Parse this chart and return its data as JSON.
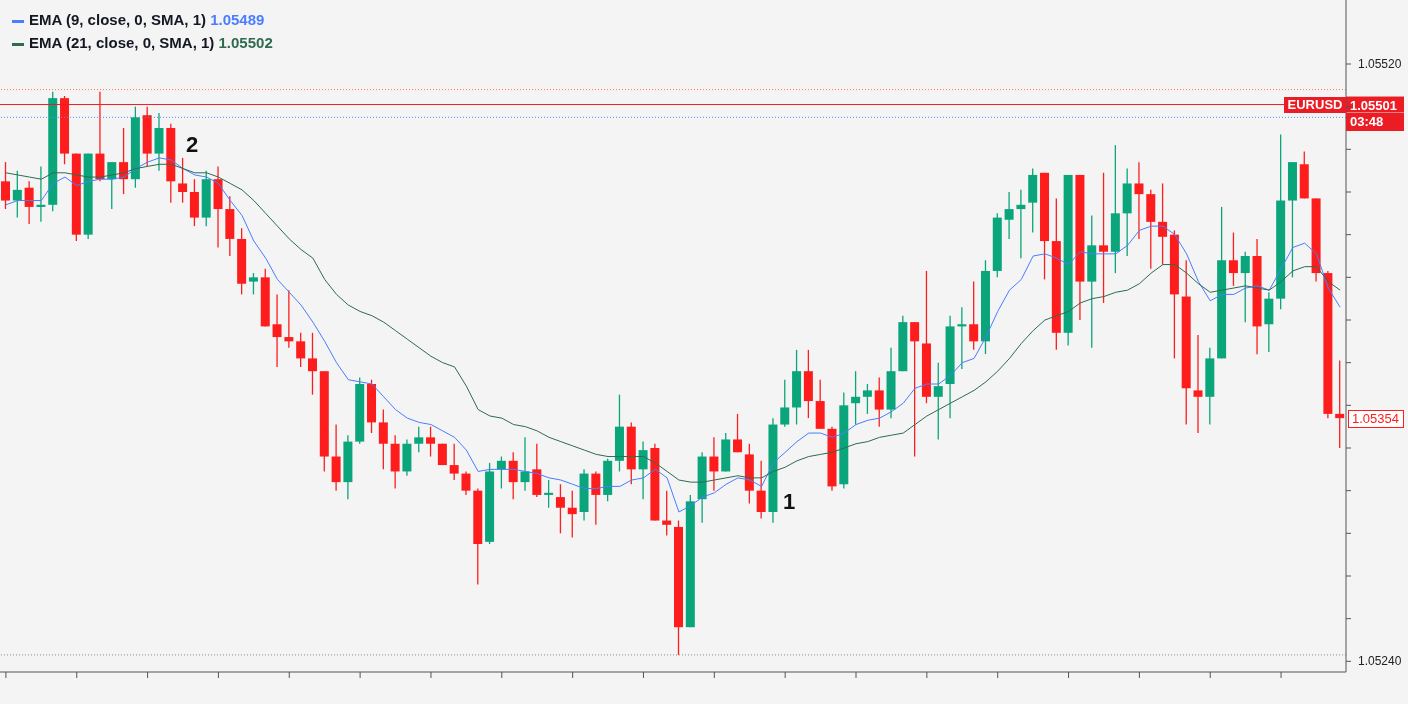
{
  "chart_data": {
    "type": "candlestick",
    "categories": [
      null,
      null,
      null,
      null,
      null,
      null,
      null,
      null,
      null,
      null,
      null,
      null,
      null,
      null,
      null,
      null,
      null,
      null,
      null,
      null,
      null,
      null,
      null,
      null,
      null,
      null,
      null,
      null,
      null,
      null,
      null,
      null,
      null,
      null,
      null,
      null,
      null,
      null,
      null,
      null,
      null,
      null,
      null,
      null,
      null,
      null,
      null,
      null,
      null,
      null,
      null,
      null,
      null,
      null,
      null,
      null,
      null,
      null,
      null,
      null,
      null,
      null,
      null,
      null,
      null,
      null,
      null,
      null,
      null,
      null,
      null,
      null,
      null,
      null,
      null,
      null,
      null,
      null,
      null,
      null,
      null,
      null,
      null,
      null,
      null,
      null,
      null,
      null,
      null,
      null,
      null,
      null,
      null,
      null,
      null,
      null,
      null,
      null,
      null,
      null,
      null,
      null,
      null,
      null,
      null,
      null,
      null,
      null,
      null,
      null,
      null,
      null,
      null,
      null
    ],
    "ohlc": [
      [
        1.05465,
        1.05474,
        1.05452,
        1.05456
      ],
      [
        1.05456,
        1.0547,
        1.05448,
        1.05461
      ],
      [
        1.05462,
        1.05465,
        1.05445,
        1.05453
      ],
      [
        1.05453,
        1.05472,
        1.05446,
        1.05454
      ],
      [
        1.05454,
        1.05507,
        1.05451,
        1.05504
      ],
      [
        1.05504,
        1.05505,
        1.05473,
        1.05478
      ],
      [
        1.05478,
        1.05478,
        1.05437,
        1.0544
      ],
      [
        1.0544,
        1.05478,
        1.05438,
        1.05478
      ],
      [
        1.05478,
        1.05507,
        1.05465,
        1.05466
      ],
      [
        1.05466,
        1.05474,
        1.05452,
        1.05474
      ],
      [
        1.05474,
        1.0549,
        1.05459,
        1.05466
      ],
      [
        1.05466,
        1.055,
        1.05462,
        1.05495
      ],
      [
        1.05496,
        1.055,
        1.05472,
        1.05478
      ],
      [
        1.05478,
        1.05497,
        1.0547,
        1.0549
      ],
      [
        1.0549,
        1.05492,
        1.05455,
        1.05465
      ],
      [
        1.05464,
        1.05476,
        1.05455,
        1.0546
      ],
      [
        1.0546,
        1.05466,
        1.05444,
        1.05448
      ],
      [
        1.05448,
        1.0547,
        1.05444,
        1.05466
      ],
      [
        1.05466,
        1.05472,
        1.05434,
        1.05452
      ],
      [
        1.05452,
        1.05458,
        1.0543,
        1.05438
      ],
      [
        1.05438,
        1.05443,
        1.05412,
        1.05417
      ],
      [
        1.05418,
        1.05422,
        1.05412,
        1.0542
      ],
      [
        1.0542,
        1.05424,
        1.05397,
        1.05397
      ],
      [
        1.05398,
        1.05412,
        1.05378,
        1.05392
      ],
      [
        1.05392,
        1.05414,
        1.05387,
        1.0539
      ],
      [
        1.0539,
        1.05394,
        1.05378,
        1.05382
      ],
      [
        1.05382,
        1.05394,
        1.05365,
        1.05376
      ],
      [
        1.05376,
        1.05376,
        1.05329,
        1.05336
      ],
      [
        1.05336,
        1.05351,
        1.0532,
        1.05324
      ],
      [
        1.05324,
        1.05346,
        1.05316,
        1.05343
      ],
      [
        1.05343,
        1.05373,
        1.05342,
        1.0537
      ],
      [
        1.0537,
        1.05372,
        1.05347,
        1.05352
      ],
      [
        1.05352,
        1.05358,
        1.0533,
        1.05342
      ],
      [
        1.05342,
        1.05346,
        1.05321,
        1.05329
      ],
      [
        1.05329,
        1.05344,
        1.05327,
        1.05342
      ],
      [
        1.05342,
        1.0535,
        1.05338,
        1.05345
      ],
      [
        1.05345,
        1.0535,
        1.05336,
        1.05342
      ],
      [
        1.05342,
        1.05342,
        1.05332,
        1.05332
      ],
      [
        1.05332,
        1.05342,
        1.05325,
        1.05328
      ],
      [
        1.05328,
        1.05329,
        1.05318,
        1.0532
      ],
      [
        1.0532,
        1.05321,
        1.05276,
        1.05295
      ],
      [
        1.05296,
        1.05333,
        1.05295,
        1.05329
      ],
      [
        1.0533,
        1.05336,
        1.05321,
        1.05334
      ],
      [
        1.05334,
        1.05338,
        1.05316,
        1.05324
      ],
      [
        1.05324,
        1.05345,
        1.0532,
        1.05329
      ],
      [
        1.0533,
        1.05342,
        1.05317,
        1.05318
      ],
      [
        1.05318,
        1.05325,
        1.05312,
        1.05319
      ],
      [
        1.05317,
        1.05323,
        1.053,
        1.05312
      ],
      [
        1.05312,
        1.0532,
        1.05298,
        1.05309
      ],
      [
        1.0531,
        1.0533,
        1.05306,
        1.05328
      ],
      [
        1.05328,
        1.05329,
        1.05304,
        1.05318
      ],
      [
        1.05318,
        1.05335,
        1.05315,
        1.05334
      ],
      [
        1.05334,
        1.05365,
        1.05329,
        1.0535
      ],
      [
        1.0535,
        1.05352,
        1.05323,
        1.0533
      ],
      [
        1.0533,
        1.05343,
        1.05316,
        1.05339
      ],
      [
        1.0534,
        1.05342,
        1.05306,
        1.05306
      ],
      [
        1.05306,
        1.0532,
        1.05299,
        1.05304
      ],
      [
        1.05303,
        1.05306,
        1.05243,
        1.05256
      ],
      [
        1.05256,
        1.05318,
        1.05256,
        1.05315
      ],
      [
        1.05316,
        1.05338,
        1.05305,
        1.05336
      ],
      [
        1.05336,
        1.05345,
        1.0532,
        1.05329
      ],
      [
        1.05329,
        1.05347,
        1.05329,
        1.05344
      ],
      [
        1.05344,
        1.05356,
        1.05338,
        1.05338
      ],
      [
        1.05337,
        1.05342,
        1.05314,
        1.0532
      ],
      [
        1.0532,
        1.05334,
        1.05307,
        1.0531
      ],
      [
        1.0531,
        1.05354,
        1.05305,
        1.05351
      ],
      [
        1.05351,
        1.05372,
        1.0535,
        1.05359
      ],
      [
        1.05359,
        1.05386,
        1.05351,
        1.05376
      ],
      [
        1.05376,
        1.05386,
        1.05354,
        1.05362
      ],
      [
        1.05362,
        1.05372,
        1.05349,
        1.05349
      ],
      [
        1.05349,
        1.0535,
        1.0532,
        1.05322
      ],
      [
        1.05323,
        1.05366,
        1.05321,
        1.0536
      ],
      [
        1.05361,
        1.05376,
        1.05351,
        1.05364
      ],
      [
        1.05364,
        1.0537,
        1.05356,
        1.05367
      ],
      [
        1.05367,
        1.05373,
        1.0535,
        1.05358
      ],
      [
        1.05358,
        1.05387,
        1.05354,
        1.05376
      ],
      [
        1.05376,
        1.05402,
        1.05376,
        1.05399
      ],
      [
        1.05399,
        1.05399,
        1.05336,
        1.0539
      ],
      [
        1.05389,
        1.05423,
        1.05361,
        1.05364
      ],
      [
        1.05364,
        1.0538,
        1.05344,
        1.05369
      ],
      [
        1.0537,
        1.05402,
        1.05354,
        1.05397
      ],
      [
        1.05397,
        1.05406,
        1.05377,
        1.05398
      ],
      [
        1.05398,
        1.05418,
        1.05386,
        1.0539
      ],
      [
        1.0539,
        1.05428,
        1.05384,
        1.05423
      ],
      [
        1.05423,
        1.0545,
        1.0542,
        1.05448
      ],
      [
        1.05447,
        1.0546,
        1.05438,
        1.05452
      ],
      [
        1.05452,
        1.05461,
        1.05429,
        1.05454
      ],
      [
        1.05455,
        1.05471,
        1.05441,
        1.05468
      ],
      [
        1.05469,
        1.05469,
        1.05419,
        1.05437
      ],
      [
        1.05437,
        1.05457,
        1.05386,
        1.05394
      ],
      [
        1.05394,
        1.05468,
        1.05388,
        1.05468
      ],
      [
        1.05468,
        1.05468,
        1.054,
        1.05418
      ],
      [
        1.05418,
        1.05449,
        1.05387,
        1.05435
      ],
      [
        1.05435,
        1.05469,
        1.05408,
        1.05432
      ],
      [
        1.05432,
        1.05482,
        1.05422,
        1.0545
      ],
      [
        1.0545,
        1.05471,
        1.0543,
        1.05464
      ],
      [
        1.05464,
        1.05474,
        1.05438,
        1.05459
      ],
      [
        1.05459,
        1.05461,
        1.05424,
        1.05446
      ],
      [
        1.05446,
        1.05464,
        1.05426,
        1.05439
      ],
      [
        1.0544,
        1.05442,
        1.05382,
        1.05412
      ],
      [
        1.05411,
        1.05428,
        1.05351,
        1.05368
      ],
      [
        1.05367,
        1.05393,
        1.05347,
        1.05364
      ],
      [
        1.05364,
        1.05387,
        1.05351,
        1.05382
      ],
      [
        1.05382,
        1.05453,
        1.05382,
        1.05428
      ],
      [
        1.05428,
        1.05441,
        1.05416,
        1.05422
      ],
      [
        1.05422,
        1.05432,
        1.05399,
        1.0543
      ],
      [
        1.0543,
        1.05438,
        1.05384,
        1.05397
      ],
      [
        1.05398,
        1.05413,
        1.05385,
        1.0541
      ],
      [
        1.0541,
        1.05487,
        1.05405,
        1.05456
      ],
      [
        1.05456,
        1.05474,
        1.0542,
        1.05474
      ],
      [
        1.05473,
        1.05479,
        1.05457,
        1.05457
      ],
      [
        1.05457,
        1.05457,
        1.05418,
        1.05422
      ],
      [
        1.05422,
        1.05423,
        1.05354,
        1.05356
      ],
      [
        1.05356,
        1.05381,
        1.0534,
        1.05354
      ]
    ],
    "colors": [
      "#fe1d1d",
      "#0ba57c",
      "#fe1d1d",
      "#0ba57c",
      "#0ba57c",
      "#fe1d1d",
      "#fe1d1d",
      "#0ba57c",
      "#fe1d1d",
      "#0ba57c",
      "#fe1d1d",
      "#0ba57c",
      "#fe1d1d",
      "#0ba57c",
      "#fe1d1d",
      "#fe1d1d",
      "#fe1d1d",
      "#0ba57c",
      "#fe1d1d",
      "#fe1d1d",
      "#fe1d1d",
      "#0ba57c",
      "#fe1d1d",
      "#fe1d1d",
      "#fe1d1d",
      "#fe1d1d",
      "#fe1d1d",
      "#fe1d1d",
      "#fe1d1d",
      "#0ba57c",
      "#0ba57c",
      "#fe1d1d",
      "#fe1d1d",
      "#fe1d1d",
      "#0ba57c",
      "#0ba57c",
      "#fe1d1d",
      "#fe1d1d",
      "#fe1d1d",
      "#fe1d1d",
      "#fe1d1d",
      "#0ba57c",
      "#0ba57c",
      "#fe1d1d",
      "#0ba57c",
      "#fe1d1d",
      "#0ba57c",
      "#fe1d1d",
      "#fe1d1d",
      "#0ba57c",
      "#fe1d1d",
      "#0ba57c",
      "#0ba57c",
      "#fe1d1d",
      "#0ba57c",
      "#fe1d1d",
      "#fe1d1d",
      "#fe1d1d",
      "#0ba57c",
      "#0ba57c",
      "#fe1d1d",
      "#0ba57c",
      "#fe1d1d",
      "#fe1d1d",
      "#fe1d1d",
      "#0ba57c",
      "#0ba57c",
      "#0ba57c",
      "#fe1d1d",
      "#fe1d1d",
      "#fe1d1d",
      "#0ba57c",
      "#0ba57c",
      "#0ba57c",
      "#fe1d1d",
      "#0ba57c",
      "#0ba57c",
      "#fe1d1d",
      "#fe1d1d",
      "#0ba57c",
      "#0ba57c",
      "#0ba57c",
      "#fe1d1d",
      "#0ba57c",
      "#0ba57c",
      "#0ba57c",
      "#0ba57c",
      "#0ba57c",
      "#fe1d1d",
      "#fe1d1d",
      "#0ba57c",
      "#fe1d1d",
      "#0ba57c",
      "#fe1d1d",
      "#0ba57c",
      "#0ba57c",
      "#fe1d1d",
      "#fe1d1d",
      "#fe1d1d",
      "#fe1d1d",
      "#fe1d1d",
      "#fe1d1d",
      "#0ba57c",
      "#0ba57c",
      "#fe1d1d",
      "#0ba57c",
      "#fe1d1d",
      "#0ba57c",
      "#0ba57c",
      "#0ba57c",
      "#fe1d1d",
      "#fe1d1d",
      "#fe1d1d",
      "#fe1d1d"
    ],
    "series": [
      {
        "name": "EMA (9, close, 0, SMA, 1)",
        "type": "line",
        "color": "#4a7dff",
        "values": [
          1.05454,
          1.05456,
          1.05456,
          1.05456,
          1.05464,
          1.05467,
          1.05463,
          1.05465,
          1.05466,
          1.05466,
          1.05467,
          1.05471,
          1.05474,
          1.05476,
          1.05475,
          1.05471,
          1.05468,
          1.05467,
          1.05464,
          1.05456,
          1.05449,
          1.05437,
          1.05429,
          1.05419,
          1.05413,
          1.05407,
          1.05399,
          1.0539,
          1.0538,
          1.05372,
          1.05371,
          1.0537,
          1.05364,
          1.05358,
          1.05354,
          1.05352,
          1.05351,
          1.05348,
          1.05345,
          1.05339,
          1.05329,
          1.0533,
          1.0533,
          1.0533,
          1.05329,
          1.05328,
          1.05326,
          1.05325,
          1.05323,
          1.05321,
          1.05321,
          1.05322,
          1.05322,
          1.05325,
          1.05326,
          1.0533,
          1.05326,
          1.0531,
          1.05313,
          1.05317,
          1.05319,
          1.05323,
          1.05326,
          1.05325,
          1.05322,
          1.05333,
          1.05338,
          1.05343,
          1.05347,
          1.05347,
          1.05345,
          1.05347,
          1.05351,
          1.05353,
          1.05354,
          1.05357,
          1.05361,
          1.05368,
          1.0537,
          1.0537,
          1.05374,
          1.0538,
          1.05382,
          1.05392,
          1.05404,
          1.05414,
          1.05419,
          1.0543,
          1.05431,
          1.05429,
          1.05426,
          1.05432,
          1.05431,
          1.05431,
          1.05431,
          1.05435,
          1.05442,
          1.05444,
          1.05444,
          1.0544,
          1.05431,
          1.05418,
          1.05409,
          1.05412,
          1.05412,
          1.05415,
          1.05416,
          1.05414,
          1.05424,
          1.05434,
          1.05436,
          1.05431,
          1.05415,
          1.05406
        ]
      },
      {
        "name": "EMA (21, close, 0, SMA, 1)",
        "type": "line",
        "color": "#2f6b50",
        "values": [
          1.05469,
          1.05468,
          1.05467,
          1.05466,
          1.05469,
          1.05469,
          1.05468,
          1.05467,
          1.05467,
          1.05468,
          1.05469,
          1.05471,
          1.05472,
          1.05473,
          1.05473,
          1.05471,
          1.05469,
          1.05469,
          1.05467,
          1.05464,
          1.05461,
          1.05456,
          1.0545,
          1.05444,
          1.05438,
          1.05433,
          1.05429,
          1.05419,
          1.05412,
          1.05407,
          1.05404,
          1.05402,
          1.05399,
          1.05395,
          1.05391,
          1.05387,
          1.05383,
          1.0538,
          1.05378,
          1.05369,
          1.05358,
          1.05355,
          1.05354,
          1.05351,
          1.0535,
          1.05348,
          1.05345,
          1.05343,
          1.05341,
          1.05339,
          1.05337,
          1.05336,
          1.05336,
          1.05336,
          1.05336,
          1.05333,
          1.05329,
          1.05325,
          1.05324,
          1.05324,
          1.05325,
          1.05326,
          1.05327,
          1.05326,
          1.05326,
          1.05329,
          1.05331,
          1.05334,
          1.05336,
          1.05337,
          1.05338,
          1.0534,
          1.05342,
          1.05343,
          1.05345,
          1.05346,
          1.05347,
          1.05351,
          1.05355,
          1.05358,
          1.05361,
          1.05364,
          1.05367,
          1.05371,
          1.05376,
          1.05382,
          1.05389,
          1.05395,
          1.054,
          1.05402,
          1.05404,
          1.05408,
          1.0541,
          1.05411,
          1.05413,
          1.05414,
          1.05417,
          1.05422,
          1.05426,
          1.05426,
          1.05422,
          1.05417,
          1.05413,
          1.05414,
          1.05415,
          1.05416,
          1.05415,
          1.05414,
          1.05418,
          1.05423,
          1.05425,
          1.05425,
          1.05418,
          1.05414
        ]
      }
    ],
    "ylim": [
      1.05235,
      1.0555
    ],
    "yticks": [
      {
        "value": 1.0524,
        "label": "1.05240"
      },
      {
        "value": 1.0526,
        "label": null
      },
      {
        "value": 1.0528,
        "label": null
      },
      {
        "value": 1.053,
        "label": null
      },
      {
        "value": 1.0532,
        "label": null
      },
      {
        "value": 1.0534,
        "label": null
      },
      {
        "value": 1.0536,
        "label": null
      },
      {
        "value": 1.0538,
        "label": null
      },
      {
        "value": 1.054,
        "label": null
      },
      {
        "value": 1.0542,
        "label": null
      },
      {
        "value": 1.0544,
        "label": null
      },
      {
        "value": 1.0546,
        "label": null
      },
      {
        "value": 1.0548,
        "label": null
      },
      {
        "value": 1.055,
        "label": null
      },
      {
        "value": 1.0552,
        "label": "1.05520"
      }
    ],
    "tick_labels": "y",
    "legend": "top left",
    "ref_lines": [
      {
        "axis": "y",
        "value": 1.05508,
        "color": "#ff7a45",
        "line_style": "dotted"
      },
      {
        "axis": "y",
        "value": 1.05501,
        "label": "1.05501",
        "color": "#ec1c24"
      },
      {
        "axis": "y",
        "value": 1.05495,
        "color": "#5b8def",
        "line_style": "dotted"
      },
      {
        "axis": "y",
        "value": 1.05243,
        "color": "#8c8c8c",
        "line_style": "dotted"
      }
    ],
    "annotations": [
      "1.05489",
      "1.05502",
      "2",
      "1",
      "EURUSD",
      "03:48",
      "1.05354"
    ]
  }
}
